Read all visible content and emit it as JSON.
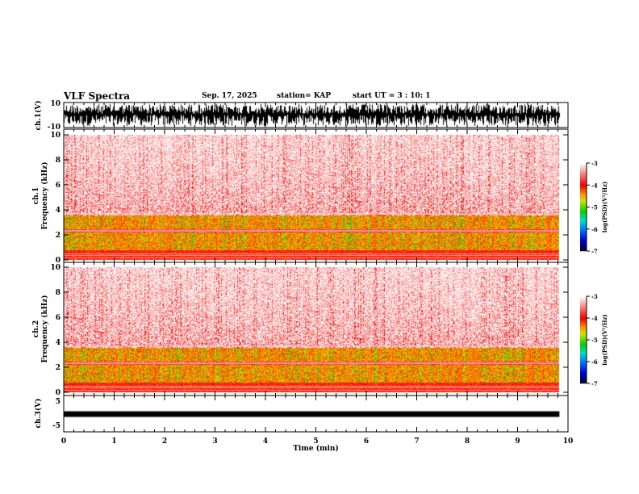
{
  "header": {
    "title": "VLF Spectra",
    "date": "Sep. 17, 2025",
    "station": "station= KAP",
    "start": "start  UT =   3  : 10: 1"
  },
  "chart_data": [
    {
      "type": "line",
      "name": "ch1 waveform",
      "ylabel": "ch.1(V)",
      "ylim": [
        -10,
        10
      ],
      "yticks": [
        "10",
        "-10"
      ],
      "xlim": [
        0,
        10
      ],
      "data_end_min": 9.83,
      "description_values": "saturated dense noise spanning -10 to 10 V"
    },
    {
      "type": "heatmap",
      "name": "ch1 spectrogram",
      "ylabel": "ch.1\nFrequency (kHz)",
      "ylabel_lines": [
        "ch.1",
        "Frequency  (kHz)"
      ],
      "ylim": [
        0,
        10
      ],
      "yticks": [
        "0",
        "2",
        "4",
        "6",
        "8",
        "10"
      ],
      "xlim": [
        0,
        10
      ],
      "colorbar": {
        "label": "log(PSD)(V²/Hz)",
        "range": [
          -7,
          -3
        ],
        "ticks": [
          "-3",
          "-4",
          "-5",
          "-6",
          "-7"
        ]
      },
      "bands_kHz": [
        [
          0.8,
          2.2
        ],
        [
          2.5,
          3.6
        ]
      ]
    },
    {
      "type": "heatmap",
      "name": "ch2 spectrogram",
      "ylabel_lines": [
        "ch.2",
        "Frequency  (kHz)"
      ],
      "ylim": [
        0,
        10
      ],
      "yticks": [
        "0",
        "2",
        "4",
        "6",
        "8",
        "10"
      ],
      "xlim": [
        0,
        10
      ],
      "colorbar": {
        "label": "log(PSD)(V²/Hz)",
        "range": [
          -7,
          -3
        ],
        "ticks": [
          "-3",
          "-4",
          "-5",
          "-6",
          "-7"
        ]
      },
      "bands_kHz": [
        [
          0.8,
          2.2
        ],
        [
          2.5,
          3.6
        ]
      ]
    },
    {
      "type": "line",
      "name": "ch3 waveform",
      "ylabel": "ch.3(V)",
      "ylim": [
        -5,
        5
      ],
      "yticks": [
        "5",
        "0",
        "-5"
      ],
      "xlim": [
        0,
        10
      ],
      "level_V": -0.5,
      "xlabel": "Time  (min)",
      "xticks": [
        "0",
        "1",
        "2",
        "3",
        "4",
        "5",
        "6",
        "7",
        "8",
        "9",
        "10"
      ]
    }
  ],
  "colors": {
    "axis": "#000000"
  }
}
